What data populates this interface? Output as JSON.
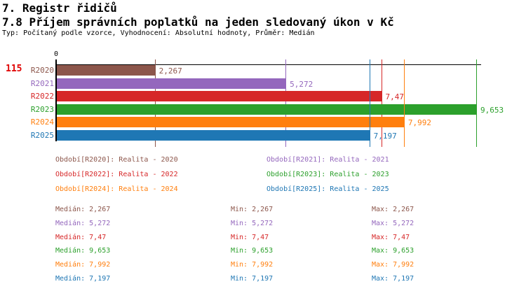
{
  "header": {
    "title": "7. Registr řidičů",
    "subtitle": "7.8 Příjem správních poplatků na jeden sledovaný úkon v Kč",
    "meta": "Typ: Počítaný podle vzorce, Vyhodnocení: Absolutní hodnoty, Průměr: Medián"
  },
  "row_id": "115",
  "chart_data": {
    "type": "bar",
    "orientation": "horizontal",
    "title": "7.8 Příjem správních poplatků na jeden sledovaný úkon v Kč",
    "categories": [
      "R2020",
      "R2021",
      "R2022",
      "R2023",
      "R2024",
      "R2025"
    ],
    "values": [
      2.267,
      5.272,
      7.47,
      9.653,
      7.992,
      7.197
    ],
    "value_labels": [
      "2,267",
      "5,272",
      "7,47",
      "9,653",
      "7,992",
      "7,197"
    ],
    "colors": [
      "#8c564b",
      "#9467bd",
      "#d62728",
      "#2ca02c",
      "#ff7f0e",
      "#1f77b4"
    ],
    "axis": {
      "min": 0,
      "max": 9.75,
      "tick_labels": [
        "0"
      ]
    },
    "marker_lines": true,
    "legend_position": "bottom",
    "grid": false
  },
  "legend": {
    "items": [
      {
        "series": "R2020",
        "label": "Období[R2020]: Realita - 2020",
        "color": "#8c564b"
      },
      {
        "series": "R2021",
        "label": "Období[R2021]: Realita - 2021",
        "color": "#9467bd"
      },
      {
        "series": "R2022",
        "label": "Období[R2022]: Realita - 2022",
        "color": "#d62728"
      },
      {
        "series": "R2023",
        "label": "Období[R2023]: Realita - 2023",
        "color": "#2ca02c"
      },
      {
        "series": "R2024",
        "label": "Období[R2024]: Realita - 2024",
        "color": "#ff7f0e"
      },
      {
        "series": "R2025",
        "label": "Období[R2025]: Realita - 2025",
        "color": "#1f77b4"
      }
    ]
  },
  "stats": {
    "col_labels": [
      "Medián",
      "Min",
      "Max"
    ],
    "rows": [
      {
        "series": "R2020",
        "color": "#8c564b",
        "median": "2,267",
        "min": "2,267",
        "max": "2,267"
      },
      {
        "series": "R2021",
        "color": "#9467bd",
        "median": "5,272",
        "min": "5,272",
        "max": "5,272"
      },
      {
        "series": "R2022",
        "color": "#d62728",
        "median": "7,47",
        "min": "7,47",
        "max": "7,47"
      },
      {
        "series": "R2023",
        "color": "#2ca02c",
        "median": "9,653",
        "min": "9,653",
        "max": "9,653"
      },
      {
        "series": "R2024",
        "color": "#ff7f0e",
        "median": "7,992",
        "min": "7,992",
        "max": "7,992"
      },
      {
        "series": "R2025",
        "color": "#1f77b4",
        "median": "7,197",
        "min": "7,197",
        "max": "7,197"
      }
    ],
    "colors": {
      "accent_row_id": "#e00000"
    }
  }
}
